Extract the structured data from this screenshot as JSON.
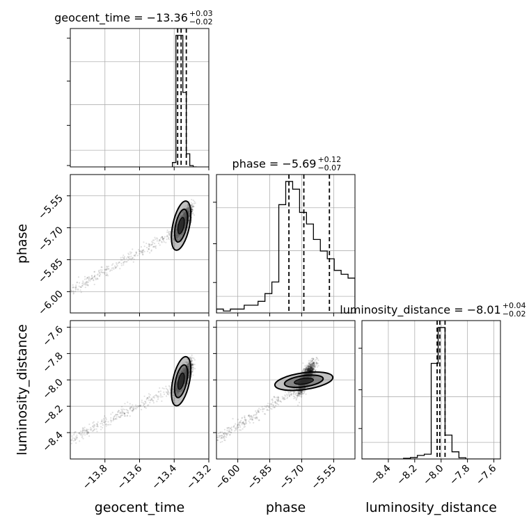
{
  "chart_data": {
    "type": "corner",
    "parameters": [
      "geocent_time",
      "phase",
      "luminosity_distance"
    ],
    "axis_labels": {
      "geocent_time": "geocent_time",
      "phase": "phase",
      "luminosity_distance": "luminosity_distance"
    },
    "titles": [
      {
        "param": "geocent_time",
        "prefix": "geocent_time = −13.36",
        "sup": "+0.03",
        "sub": "−0.02"
      },
      {
        "param": "phase",
        "prefix": "phase = −5.69",
        "sup": "+0.12",
        "sub": "−0.07"
      },
      {
        "param": "luminosity_distance",
        "prefix": "luminosity_distance = −8.01",
        "sup": "+0.04",
        "sub": "−0.02"
      }
    ],
    "ranges": {
      "geocent_time": [
        -14.0,
        -13.2
      ],
      "phase": [
        -6.1,
        -5.45
      ],
      "luminosity_distance": [
        -8.6,
        -7.55
      ]
    },
    "ticks": {
      "geocent_time": [
        -13.8,
        -13.6,
        -13.4,
        -13.2
      ],
      "phase": [
        -6.0,
        -5.85,
        -5.7,
        -5.55
      ],
      "luminosity_distance": [
        -8.4,
        -8.2,
        -8.0,
        -7.8,
        -7.6
      ]
    },
    "tick_labels": {
      "geocent_time": [
        "−13.8",
        "−13.6",
        "−13.4",
        "−13.2"
      ],
      "phase": [
        "−6.00",
        "−5.85",
        "−5.70",
        "−5.55"
      ],
      "luminosity_distance": [
        "−8.4",
        "−8.2",
        "−8.0",
        "−7.8",
        "−7.6"
      ]
    },
    "quantiles": {
      "geocent_time": [
        -13.38,
        -13.36,
        -13.33
      ],
      "phase": [
        -5.76,
        -5.69,
        -5.57
      ],
      "luminosity_distance": [
        -8.03,
        -8.01,
        -7.97
      ]
    },
    "histograms": {
      "geocent_time": {
        "bin_edges": [
          -13.41,
          -13.39,
          -13.37,
          -13.35,
          -13.33,
          -13.31,
          -13.29,
          -13.27
        ],
        "counts": [
          1,
          30,
          30,
          17,
          3,
          0.3,
          0
        ]
      },
      "phase": {
        "bin_edges": [
          -6.1,
          -6.0675,
          -6.035,
          -6.0025,
          -5.97,
          -5.9375,
          -5.905,
          -5.8725,
          -5.84,
          -5.8075,
          -5.775,
          -5.7425,
          -5.71,
          -5.6775,
          -5.645,
          -5.6125,
          -5.58,
          -5.5475,
          -5.515,
          -5.4825,
          -5.45
        ],
        "counts": [
          1,
          0.5,
          1,
          1,
          2,
          2,
          3,
          5,
          8,
          28,
          34,
          32,
          26,
          23,
          19,
          16,
          14,
          11,
          10,
          9
        ]
      },
      "luminosity_distance": {
        "bin_edges": [
          -8.6,
          -8.5475,
          -8.495,
          -8.4425,
          -8.39,
          -8.3375,
          -8.285,
          -8.2325,
          -8.18,
          -8.1275,
          -8.075,
          -8.0225,
          -7.97,
          -7.9175,
          -7.865,
          -7.8125,
          -7.76,
          -7.7075,
          -7.655,
          -7.6025,
          -7.55
        ],
        "counts": [
          0,
          0,
          0,
          0,
          0,
          0,
          0.3,
          0.6,
          1.5,
          2,
          40,
          55,
          10,
          3,
          0.5,
          0,
          0,
          0,
          0,
          0
        ]
      }
    },
    "grid": true,
    "legend": "none"
  }
}
